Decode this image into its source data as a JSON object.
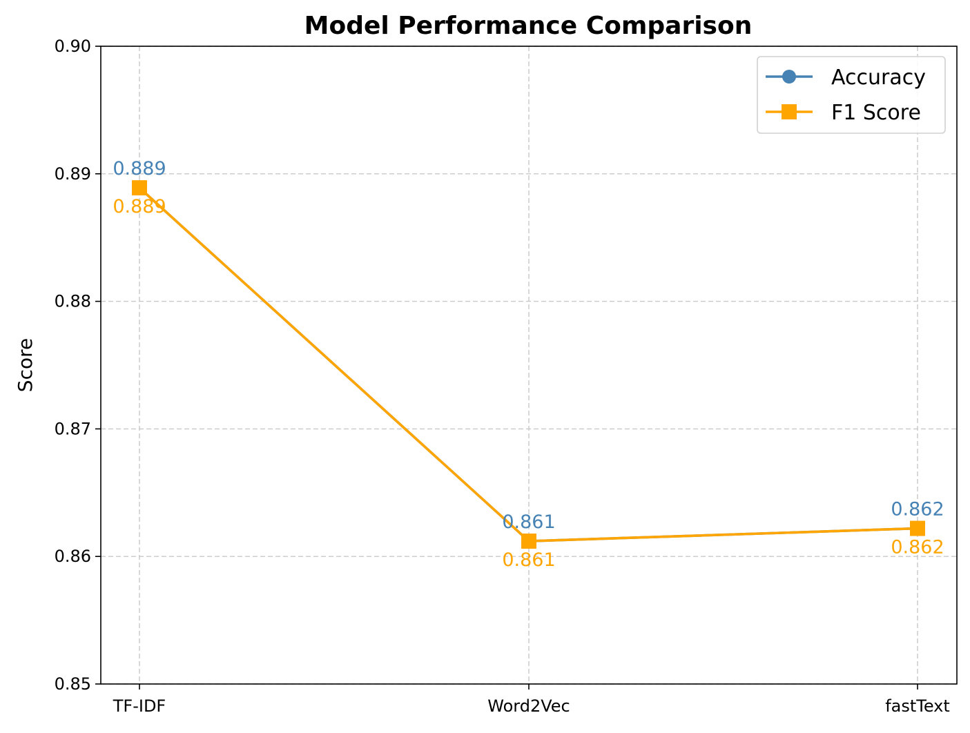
{
  "chart_data": {
    "type": "line",
    "title": "Model Performance Comparison",
    "xlabel": "",
    "ylabel": "Score",
    "categories": [
      "TF-IDF",
      "Word2Vec",
      "fastText"
    ],
    "ylim": [
      0.85,
      0.9
    ],
    "yticks": [
      0.85,
      0.86,
      0.87,
      0.88,
      0.89,
      0.9
    ],
    "ytick_labels": [
      "0.85",
      "0.86",
      "0.87",
      "0.88",
      "0.89",
      "0.90"
    ],
    "grid": true,
    "legend_position": "top-right",
    "series": [
      {
        "name": "Accuracy",
        "values": [
          0.8889,
          0.8612,
          0.8622
        ],
        "labels": [
          "0.889",
          "0.861",
          "0.862"
        ],
        "color": "#4682b4",
        "marker": "circle",
        "label_position": "above"
      },
      {
        "name": "F1 Score",
        "values": [
          0.8889,
          0.8612,
          0.8622
        ],
        "labels": [
          "0.889",
          "0.861",
          "0.862"
        ],
        "color": "#ffa500",
        "marker": "square",
        "label_position": "below"
      }
    ]
  }
}
